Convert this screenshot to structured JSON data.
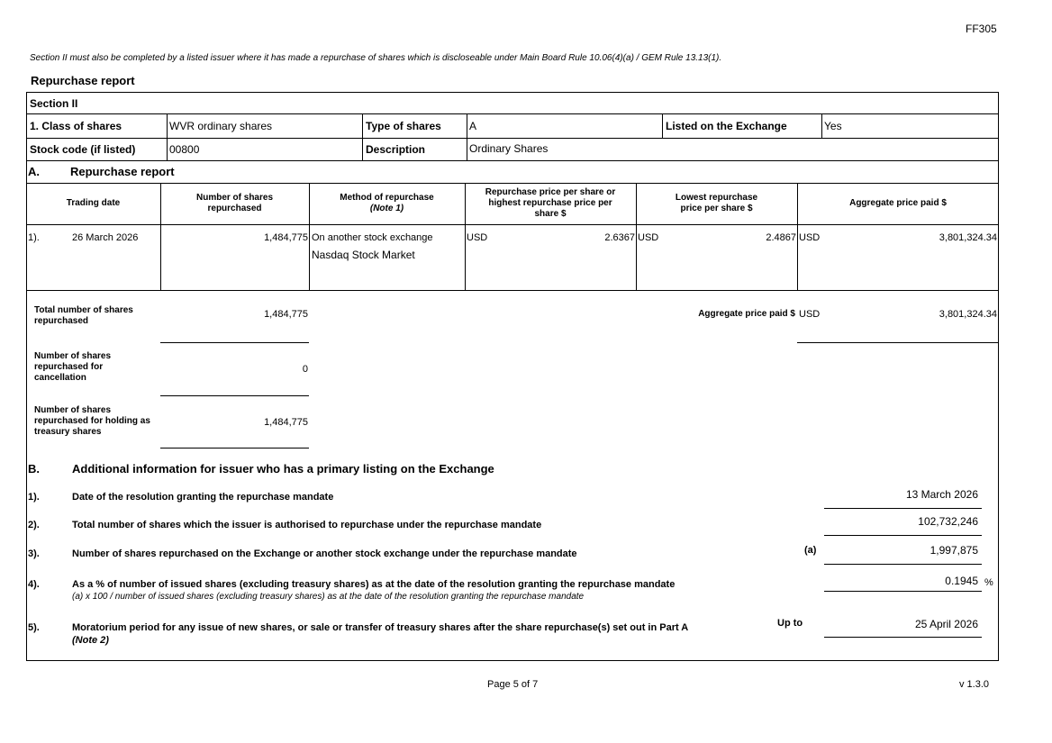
{
  "form_code": "FF305",
  "intro_note": "Section II must also be completed by a listed issuer where it has made a repurchase of shares which is discloseable under Main Board Rule 10.06(4)(a) / GEM Rule 13.13(1).",
  "report_title": "Repurchase report",
  "section_label": "Section II",
  "share_info": {
    "class_label": "1. Class of shares",
    "class_value": "WVR ordinary shares",
    "type_label": "Type of shares",
    "type_value": "A",
    "listed_label": "Listed on the Exchange",
    "listed_value": "Yes",
    "stock_code_label": "Stock code (if listed)",
    "stock_code_value": "00800",
    "description_label": "Description",
    "description_value": "Ordinary Shares"
  },
  "part_a": {
    "letter": "A.",
    "title": "Repurchase report",
    "columns": [
      "Trading date",
      "Number of shares repurchased",
      "Method of repurchase",
      "(Note 1)",
      "Repurchase price per share or highest repurchase price per share $",
      "Lowest repurchase price per share $",
      "Aggregate price paid $"
    ],
    "rows": [
      {
        "index": "1).",
        "date": "26 March 2026",
        "shares": "1,484,775",
        "method": "On another stock exchange",
        "exchange": "Nasdaq Stock Market",
        "high_currency": "USD",
        "high_price": "2.6367",
        "low_currency": "USD",
        "low_price": "2.4867",
        "agg_currency": "USD",
        "agg_price": "3,801,324.34"
      }
    ],
    "total_label": "Total number of shares repurchased",
    "total_value": "1,484,775",
    "agg_total_label": "Aggregate price paid $",
    "agg_total_currency": "USD",
    "agg_total_value": "3,801,324.34",
    "cancel_label": "Number of shares repurchased for cancellation",
    "cancel_value": "0",
    "treasury_label": "Number of shares repurchased for holding as treasury shares",
    "treasury_value": "1,484,775"
  },
  "part_b": {
    "letter": "B.",
    "title": "Additional information for issuer who has a primary listing on the Exchange",
    "items": [
      {
        "index": "1).",
        "label": "Date of the resolution granting the repurchase mandate",
        "value": "13 March 2026"
      },
      {
        "index": "2).",
        "label": "Total number of shares which the issuer is authorised to repurchase under the repurchase mandate",
        "value": "102,732,246"
      },
      {
        "index": "3).",
        "label": "Number of shares repurchased on the Exchange or another stock exchange under the repurchase mandate",
        "tag": "(a)",
        "value": "1,997,875"
      },
      {
        "index": "4).",
        "label": "As a % of number of issued shares (excluding treasury shares) as at the date of the resolution granting the repurchase mandate",
        "sub": "(a) x 100 / number of issued shares (excluding treasury shares) as at the date of the resolution granting the repurchase mandate",
        "value": "0.1945",
        "unit": "%"
      },
      {
        "index": "5).",
        "label": "Moratorium period for any issue of new shares, or sale or transfer of treasury shares after the share repurchase(s) set out in Part A",
        "sub": "(Note 2)",
        "tag": "Up to",
        "value": "25 April 2026"
      }
    ]
  },
  "footer": {
    "page": "Page 5 of 7",
    "version": "v 1.3.0"
  }
}
